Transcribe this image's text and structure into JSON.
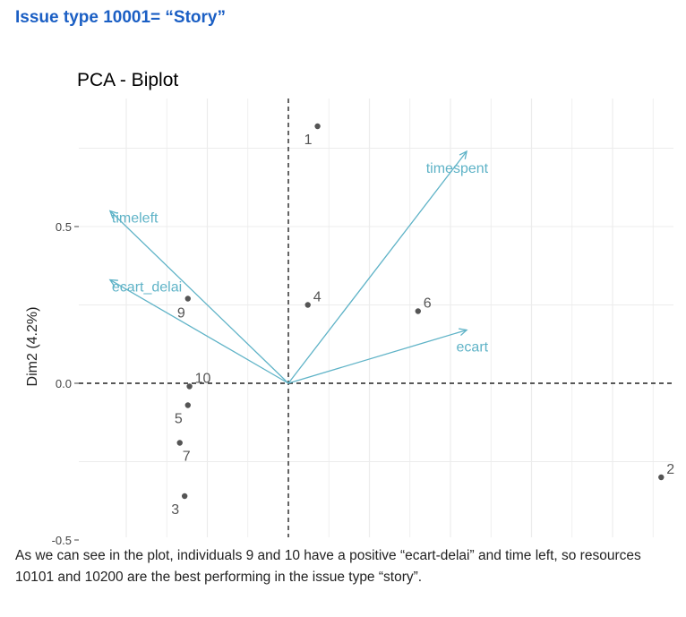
{
  "page": {
    "heading": "Issue type 10001= “Story”",
    "caption": "As we can see in the plot, individuals 9 and 10 have a positive “ecart-delai” and time left, so resources 10101 and 10200 are the best performing in the issue type “story”."
  },
  "chart_data": {
    "type": "scatter",
    "title": "PCA - Biplot",
    "xlabel": "",
    "ylabel": "Dim2 (4.2%)",
    "xlim": [
      -1.25,
      2.35
    ],
    "ylim": [
      -0.5,
      0.9
    ],
    "y_ticks": [
      0.5,
      0.0,
      -0.5
    ],
    "y_tick_labels": [
      "0.5",
      "0.0",
      "-0.5"
    ],
    "grid": true,
    "reference_lines": {
      "x": 0,
      "y": 0
    },
    "series": [
      {
        "values": [
          {
            "label": "1",
            "x": 0.18,
            "y": 0.82
          },
          {
            "label": "2",
            "x": 2.3,
            "y": -0.3
          },
          {
            "label": "3",
            "x": -0.64,
            "y": -0.36
          },
          {
            "label": "4",
            "x": 0.12,
            "y": 0.25
          },
          {
            "label": "5",
            "x": -0.62,
            "y": -0.07
          },
          {
            "label": "6",
            "x": 0.8,
            "y": 0.23
          },
          {
            "label": "7",
            "x": -0.67,
            "y": -0.19
          },
          {
            "label": "9",
            "x": -0.62,
            "y": 0.27
          },
          {
            "label": "10",
            "x": -0.61,
            "y": -0.01
          }
        ]
      }
    ],
    "variables": [
      {
        "label": "timespent",
        "x": 1.1,
        "y": 0.74
      },
      {
        "label": "timeleft",
        "x": -1.1,
        "y": 0.55
      },
      {
        "label": "ecart_delai",
        "x": -1.1,
        "y": 0.33
      },
      {
        "label": "ecart",
        "x": 1.1,
        "y": 0.17
      }
    ],
    "colors": {
      "points": "#555555",
      "arrows": "#5fb3c7",
      "grid": "#ececec",
      "text": "#555555"
    }
  }
}
